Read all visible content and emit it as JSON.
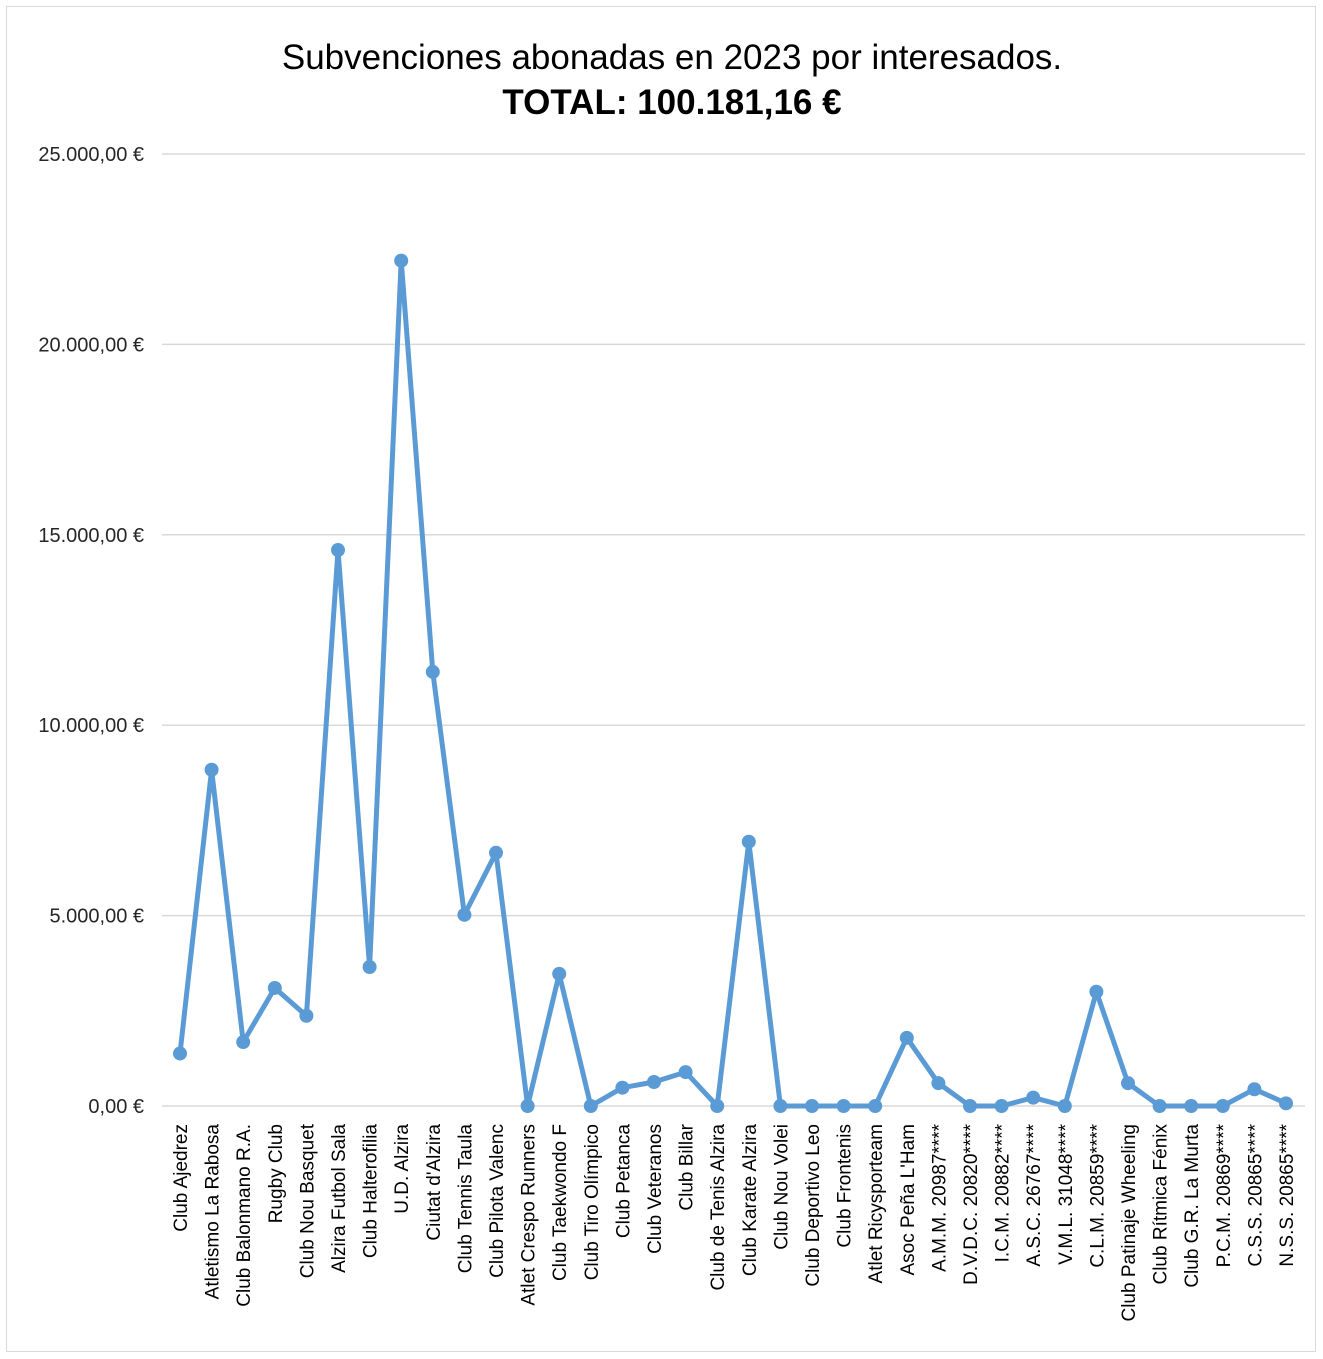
{
  "chart_data": {
    "type": "line",
    "title": "Subvenciones abonadas en 2023 por interesados.",
    "subtitle": "TOTAL: 100.181,16 €",
    "xlabel": "",
    "ylabel": "",
    "ylim": [
      0,
      25000
    ],
    "yticks": [
      0,
      5000,
      10000,
      15000,
      20000,
      25000
    ],
    "ytick_labels": [
      "0,00 €",
      "5.000,00 €",
      "10.000,00 €",
      "15.000,00 €",
      "20.000,00 €",
      "25.000,00 €"
    ],
    "grid": true,
    "legend": "none",
    "categories": [
      "Club Ajedrez",
      "Atletismo La Rabosa",
      "Club Balonmano R.A.",
      "Rugby Club",
      "Club Nou Basquet",
      "Alzira Futbol Sala",
      "Club Halterofilia",
      "U.D. Alzira",
      "Ciutat d'Alzira",
      "Club Tennis Taula",
      "Club Pilota Valenc",
      "Atlet Crespo Runners",
      "Club Taekwondo F",
      "Club Tiro Olímpico",
      "Club Petanca",
      "Club Veteranos",
      "Club Billar",
      "Club de Tenis Alzira",
      "Club Karate Alzira",
      "Club Nou Volei",
      "Club Deportivo Leo",
      "Club Frontenis",
      "Atlet Ricysporteam",
      "Asoc Peña L'Ham",
      "A.M.M. 20987****",
      "D.V.D.C. 20820****",
      "I.C.M. 20882****",
      "A.S.C. 26767****",
      "V.M.L. 31048****",
      "C.L.M. 20859****",
      "Club Patinaje Wheeling",
      "Club Rítmica Fénix",
      "Club G.R. La Murta",
      "P.C.M. 20869****",
      "C.S.S. 20865****",
      "N.S.S. 20865****"
    ],
    "series": [
      {
        "color": "#5b9bd5",
        "values": [
          1380,
          8830,
          1680,
          3100,
          2370,
          14600,
          3650,
          22200,
          11400,
          5020,
          6650,
          0,
          3470,
          0,
          480,
          630,
          890,
          0,
          6940,
          0,
          0,
          0,
          0,
          1790,
          600,
          0,
          0,
          220,
          0,
          3000,
          600,
          0,
          0,
          0,
          440,
          70
        ]
      }
    ]
  }
}
